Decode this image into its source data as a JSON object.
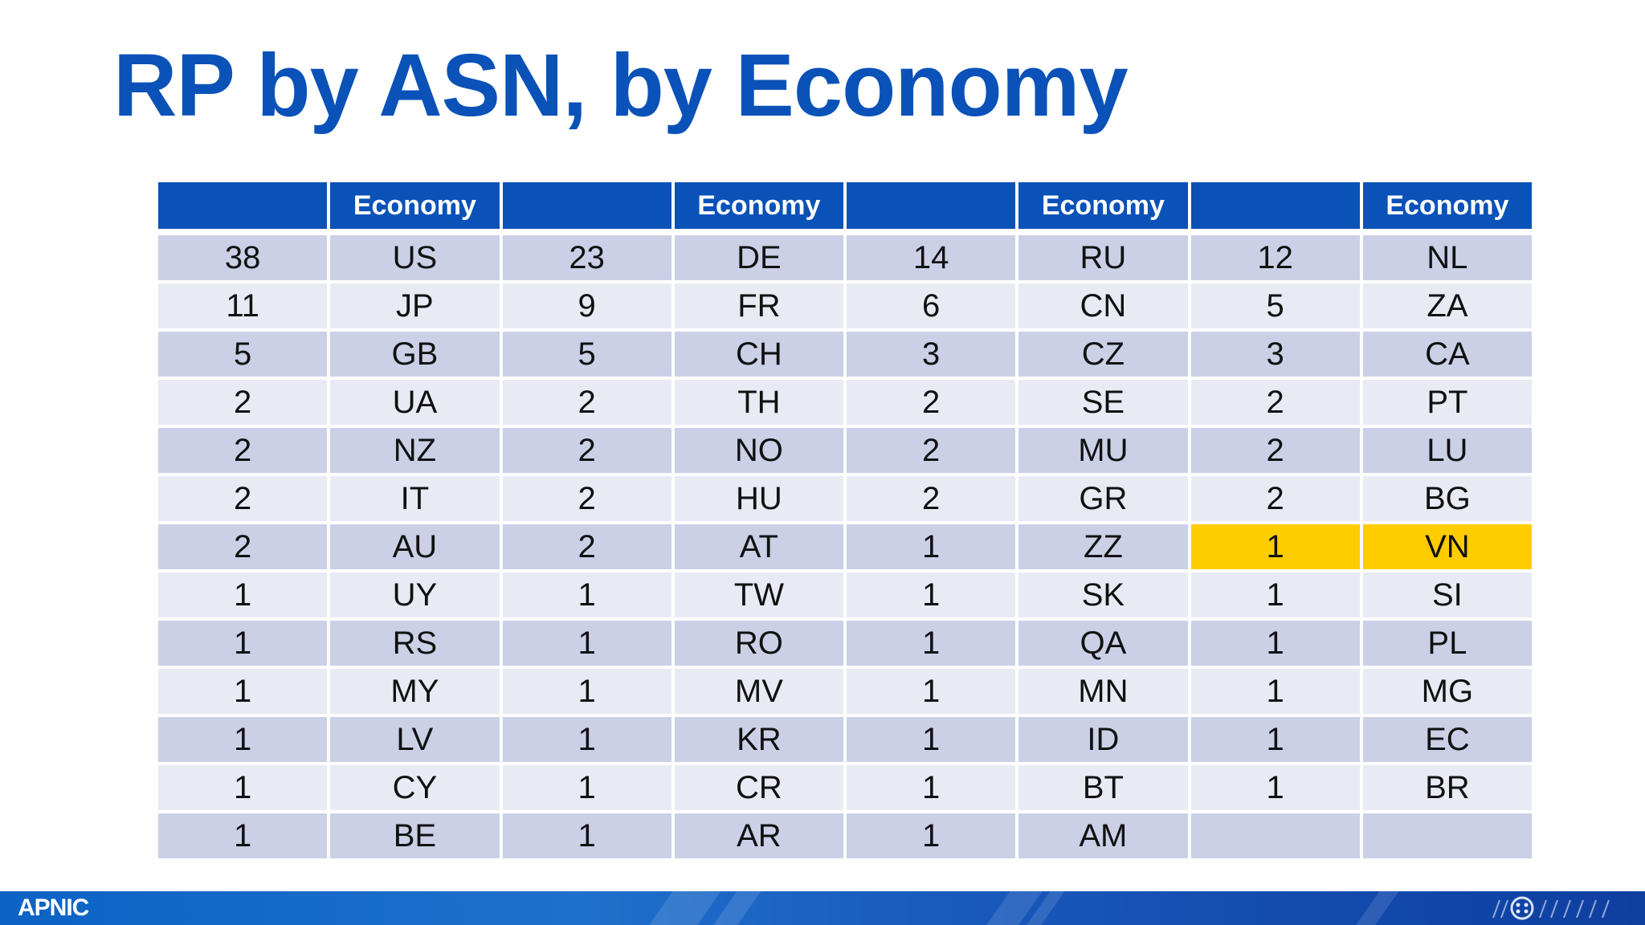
{
  "title": "RP by ASN, by Economy",
  "table": {
    "headers": [
      "",
      "Economy",
      "",
      "Economy",
      "",
      "Economy",
      "",
      "Economy"
    ],
    "rows": [
      [
        "38",
        "US",
        "23",
        "DE",
        "14",
        "RU",
        "12",
        "NL"
      ],
      [
        "11",
        "JP",
        "9",
        "FR",
        "6",
        "CN",
        "5",
        "ZA"
      ],
      [
        "5",
        "GB",
        "5",
        "CH",
        "3",
        "CZ",
        "3",
        "CA"
      ],
      [
        "2",
        "UA",
        "2",
        "TH",
        "2",
        "SE",
        "2",
        "PT"
      ],
      [
        "2",
        "NZ",
        "2",
        "NO",
        "2",
        "MU",
        "2",
        "LU"
      ],
      [
        "2",
        "IT",
        "2",
        "HU",
        "2",
        "GR",
        "2",
        "BG"
      ],
      [
        "2",
        "AU",
        "2",
        "AT",
        "1",
        "ZZ",
        "1",
        "VN"
      ],
      [
        "1",
        "UY",
        "1",
        "TW",
        "1",
        "SK",
        "1",
        "SI"
      ],
      [
        "1",
        "RS",
        "1",
        "RO",
        "1",
        "QA",
        "1",
        "PL"
      ],
      [
        "1",
        "MY",
        "1",
        "MV",
        "1",
        "MN",
        "1",
        "MG"
      ],
      [
        "1",
        "LV",
        "1",
        "KR",
        "1",
        "ID",
        "1",
        "EC"
      ],
      [
        "1",
        "CY",
        "1",
        "CR",
        "1",
        "BT",
        "1",
        "BR"
      ],
      [
        "1",
        "BE",
        "1",
        "AR",
        "1",
        "AM",
        "",
        ""
      ]
    ],
    "highlight": {
      "row": 6,
      "cols": [
        6,
        7
      ],
      "color": "#ffcc00"
    }
  },
  "footer": {
    "logo": "APNIC",
    "logo_icon": "apnic-network-mark-icon"
  },
  "colors": {
    "accent": "#0a52b8",
    "row_odd": "#cbd0e7",
    "row_even": "#e8ebf4",
    "highlight": "#ffcc00"
  }
}
